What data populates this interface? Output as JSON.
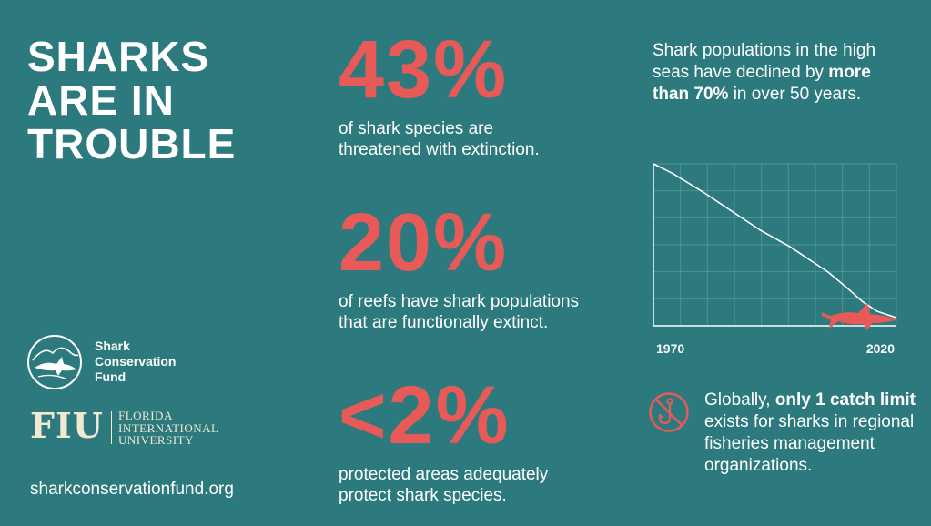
{
  "title": {
    "line1": "SHARKS",
    "line2": "ARE IN",
    "line3": "TROUBLE"
  },
  "stats": [
    {
      "value": "43%",
      "line1": "of shark species are",
      "line2": "threatened with extinction."
    },
    {
      "value": "20%",
      "line1": "of reefs have shark populations",
      "line2": "that are functionally extinct."
    },
    {
      "value": "<2%",
      "line1": "protected areas adequately",
      "line2": "protect shark species."
    }
  ],
  "chart_caption": {
    "pre": "Shark populations in the high seas have declined by ",
    "bold": "more than 70%",
    "post": " in over 50 years."
  },
  "chart_data": {
    "type": "line",
    "x_tick_labels": [
      "1970",
      "2020"
    ],
    "xlim": [
      1970,
      2020
    ],
    "ylim": [
      0,
      100
    ],
    "grid": true,
    "series": [
      {
        "x": [
          1970,
          1974,
          1980,
          1986,
          1992,
          1998,
          2002,
          2006,
          2010,
          2013,
          2016,
          2020
        ],
        "values": [
          100,
          94,
          83,
          71,
          59,
          49,
          41,
          33,
          23,
          15,
          9,
          5
        ]
      }
    ],
    "colors": {
      "line": "#ffffff",
      "grid": "#4f9497",
      "axis": "#ffffff",
      "shark": "#e85a57"
    }
  },
  "catch": {
    "pre": "Globally, ",
    "bold": "only 1 catch limit",
    "post": " exists for sharks in regional fisheries management organizations."
  },
  "logos": {
    "scf": {
      "line1": "Shark",
      "line2": "Conservation",
      "line3": "Fund"
    },
    "fiu": {
      "mark": "FIU",
      "line1": "FLORIDA",
      "line2": "INTERNATIONAL",
      "line3": "UNIVERSITY"
    }
  },
  "url": "sharkconservationfund.org",
  "colors": {
    "background": "#2c7a7e",
    "accent": "#e85a57",
    "text": "#ffffff",
    "fiu_cream": "#f1e9d2"
  }
}
